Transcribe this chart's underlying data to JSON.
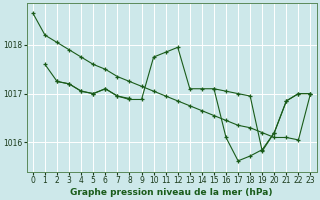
{
  "title": "Graphe pression niveau de la mer (hPa)",
  "bg_color": "#cde8ea",
  "grid_color": "#b0d8da",
  "line_color": "#1a5c1a",
  "xlim": [
    -0.5,
    23.5
  ],
  "ylim": [
    1015.4,
    1018.85
  ],
  "yticks": [
    1016,
    1017,
    1018
  ],
  "xticks": [
    0,
    1,
    2,
    3,
    4,
    5,
    6,
    7,
    8,
    9,
    10,
    11,
    12,
    13,
    14,
    15,
    16,
    17,
    18,
    19,
    20,
    21,
    22,
    23
  ],
  "curves": [
    {
      "x": [
        0,
        1,
        2,
        3,
        4,
        5,
        6,
        7,
        8,
        9,
        10,
        11,
        12,
        13,
        14,
        15,
        16,
        17,
        18,
        19,
        20,
        21,
        22,
        23
      ],
      "y": [
        1018.65,
        1018.2,
        1018.05,
        1017.9,
        1017.75,
        1017.6,
        1017.5,
        1017.35,
        1017.25,
        1017.15,
        1017.05,
        1016.95,
        1016.85,
        1016.75,
        1016.65,
        1016.55,
        1016.45,
        1016.35,
        1016.3,
        1016.2,
        1016.1,
        1016.1,
        1016.05,
        1017.0
      ]
    },
    {
      "x": [
        1,
        2,
        3,
        4,
        5,
        6,
        7,
        8
      ],
      "y": [
        1017.6,
        1017.25,
        1017.2,
        1017.05,
        1017.0,
        1017.1,
        1016.95,
        1016.9
      ]
    },
    {
      "x": [
        2,
        3,
        4,
        5,
        6,
        7,
        8,
        9,
        10,
        11,
        12,
        13,
        14,
        15,
        16,
        17,
        18,
        19,
        20,
        21,
        22,
        23
      ],
      "y": [
        1017.25,
        1017.2,
        1017.05,
        1017.0,
        1017.1,
        1016.95,
        1016.88,
        1016.88,
        1017.75,
        1017.85,
        1017.95,
        1017.1,
        1017.1,
        1017.1,
        1016.1,
        1015.62,
        1015.72,
        1015.85,
        1016.2,
        1016.85,
        1017.0,
        1017.0
      ]
    },
    {
      "x": [
        15,
        16,
        17,
        18,
        19,
        20,
        21,
        22,
        23
      ],
      "y": [
        1017.1,
        1017.05,
        1017.0,
        1016.95,
        1015.82,
        1016.2,
        1016.85,
        1017.0,
        1017.0
      ]
    }
  ]
}
